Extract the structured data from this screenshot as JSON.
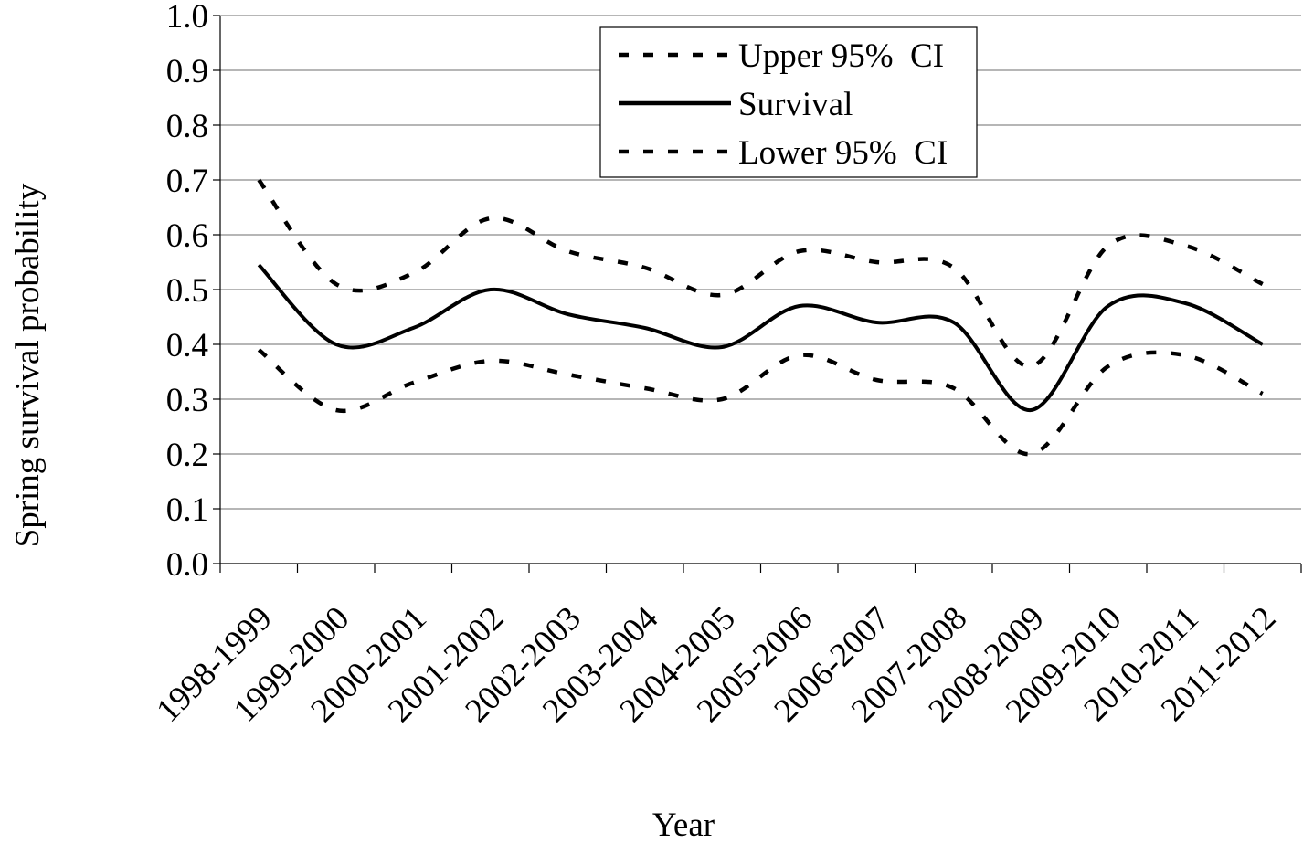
{
  "chart_data": {
    "type": "line",
    "title": "",
    "xlabel": "Year",
    "ylabel": "Spring survival probability",
    "categories": [
      "1998-1999",
      "1999-2000",
      "2000-2001",
      "2001-2002",
      "2002-2003",
      "2003-2004",
      "2004-2005",
      "2005-2006",
      "2006-2007",
      "2007-2008",
      "2008-2009",
      "2009-2010",
      "2010-2011",
      "2011-2012"
    ],
    "ylim": [
      0,
      1.0
    ],
    "yticks": [
      "0.0",
      "0.1",
      "0.2",
      "0.3",
      "0.4",
      "0.5",
      "0.6",
      "0.7",
      "0.8",
      "0.9",
      "1.0"
    ],
    "grid": true,
    "legend_position": "top-center",
    "series": [
      {
        "name": "Upper 95%  CI",
        "style": "dashed",
        "color": "#000000",
        "values": [
          0.7,
          0.51,
          0.53,
          0.63,
          0.57,
          0.54,
          0.49,
          0.57,
          0.55,
          0.54,
          0.36,
          0.58,
          0.58,
          0.51
        ]
      },
      {
        "name": "Survival",
        "style": "solid",
        "color": "#000000",
        "values": [
          0.545,
          0.4,
          0.43,
          0.5,
          0.455,
          0.43,
          0.395,
          0.47,
          0.44,
          0.44,
          0.28,
          0.47,
          0.475,
          0.4
        ]
      },
      {
        "name": "Lower 95%  CI",
        "style": "dashed",
        "color": "#000000",
        "values": [
          0.39,
          0.28,
          0.33,
          0.37,
          0.345,
          0.32,
          0.3,
          0.38,
          0.335,
          0.32,
          0.2,
          0.36,
          0.38,
          0.31
        ]
      }
    ]
  }
}
